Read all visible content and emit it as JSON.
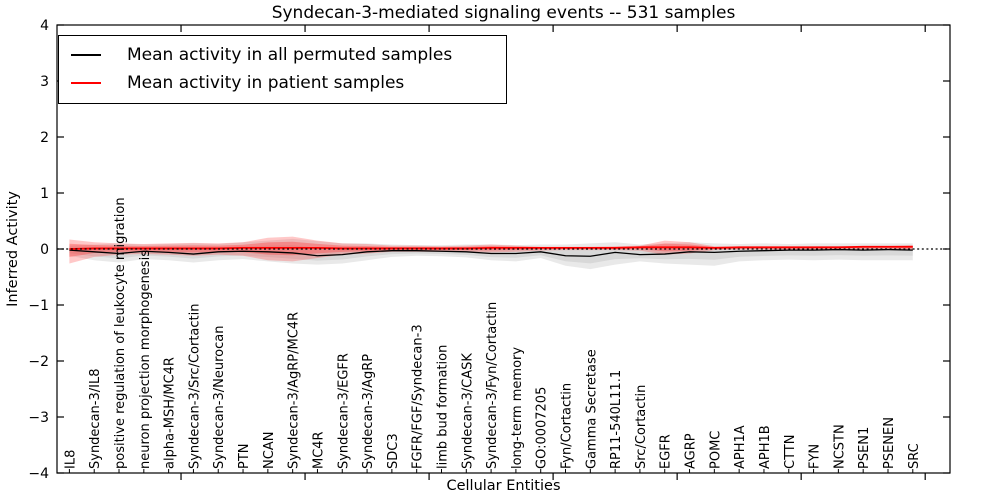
{
  "chart_data": {
    "type": "line",
    "title": "Syndecan-3-mediated signaling events -- 531 samples",
    "xlabel": "Cellular Entities",
    "ylabel": "Inferred Activity",
    "ylim": [
      -4,
      4
    ],
    "yticks": [
      4,
      3,
      2,
      1,
      0,
      -1,
      -2,
      -3,
      -4
    ],
    "grid": false,
    "legend_position": "upper left",
    "reference_line": {
      "y": 0,
      "style": "dotted",
      "color": "#000000"
    },
    "categories": [
      "IL8",
      "Syndecan-3/IL8",
      "positive regulation of leukocyte migration",
      "neuron projection morphogenesis",
      "alpha-MSH/MC4R",
      "Syndecan-3/Src/Cortactin",
      "Syndecan-3/Neurocan",
      "PTN",
      "NCAN",
      "Syndecan-3/AgRP/MC4R",
      "MC4R",
      "Syndecan-3/EGFR",
      "Syndecan-3/AgRP",
      "SDC3",
      "FGFR/FGF/Syndecan-3",
      "limb bud formation",
      "Syndecan-3/CASK",
      "Syndecan-3/Fyn/Cortactin",
      "long-term memory",
      "GO:0007205",
      "Fyn/Cortactin",
      "Gamma Secretase",
      "RP11-540L11.1",
      "Src/Cortactin",
      "EGFR",
      "AGRP",
      "POMC",
      "APH1A",
      "APH1B",
      "CTTN",
      "FYN",
      "NCSTN",
      "PSEN1",
      "PSENEN",
      "SRC"
    ],
    "series": [
      {
        "name": "Mean activity in all permuted samples",
        "color": "#000000",
        "band_color": "#999999",
        "values": [
          -0.02,
          -0.05,
          -0.08,
          -0.04,
          -0.06,
          -0.09,
          -0.05,
          -0.04,
          -0.05,
          -0.07,
          -0.12,
          -0.1,
          -0.05,
          -0.03,
          -0.03,
          -0.04,
          -0.05,
          -0.08,
          -0.08,
          -0.05,
          -0.12,
          -0.13,
          -0.06,
          -0.1,
          -0.09,
          -0.05,
          -0.06,
          -0.04,
          -0.03,
          -0.02,
          -0.02,
          -0.01,
          -0.02,
          -0.01,
          -0.02
        ],
        "band_upper": [
          0.06,
          0.08,
          0.1,
          0.08,
          0.09,
          0.1,
          0.09,
          0.12,
          0.15,
          0.18,
          0.14,
          0.1,
          0.1,
          0.08,
          0.07,
          0.07,
          0.08,
          0.08,
          0.07,
          0.08,
          0.08,
          0.1,
          0.12,
          0.08,
          0.1,
          0.12,
          0.1,
          0.09,
          0.1,
          0.09,
          0.1,
          0.1,
          0.1,
          0.1,
          0.1
        ],
        "band_lower": [
          -0.12,
          -0.2,
          -0.24,
          -0.18,
          -0.2,
          -0.24,
          -0.2,
          -0.18,
          -0.22,
          -0.26,
          -0.28,
          -0.26,
          -0.2,
          -0.14,
          -0.12,
          -0.13,
          -0.15,
          -0.2,
          -0.22,
          -0.16,
          -0.3,
          -0.36,
          -0.28,
          -0.22,
          -0.26,
          -0.28,
          -0.3,
          -0.22,
          -0.2,
          -0.19,
          -0.2,
          -0.19,
          -0.2,
          -0.2,
          -0.2
        ]
      },
      {
        "name": "Mean activity in patient samples",
        "color": "#ff0000",
        "band_color": "#ff2222",
        "values": [
          0.0,
          0.01,
          0.01,
          0.01,
          0.01,
          0.01,
          0.01,
          0.02,
          0.02,
          0.02,
          0.02,
          0.01,
          0.01,
          0.01,
          0.01,
          0.01,
          0.01,
          0.02,
          0.02,
          0.02,
          0.02,
          0.02,
          0.02,
          0.03,
          0.03,
          0.03,
          0.02,
          0.03,
          0.03,
          0.03,
          0.03,
          0.03,
          0.04,
          0.04,
          0.04
        ],
        "band_upper": [
          0.17,
          0.12,
          0.1,
          0.09,
          0.1,
          0.11,
          0.1,
          0.12,
          0.2,
          0.22,
          0.15,
          0.1,
          0.09,
          0.06,
          0.06,
          0.05,
          0.06,
          0.08,
          0.06,
          0.04,
          0.04,
          0.04,
          0.05,
          0.06,
          0.15,
          0.12,
          0.05,
          0.04,
          0.04,
          0.04,
          0.04,
          0.04,
          0.05,
          0.05,
          0.07
        ],
        "band_lower": [
          -0.26,
          -0.14,
          -0.1,
          -0.09,
          -0.1,
          -0.12,
          -0.1,
          -0.12,
          -0.2,
          -0.22,
          -0.16,
          -0.1,
          -0.08,
          -0.05,
          -0.05,
          -0.05,
          -0.05,
          -0.06,
          -0.05,
          -0.03,
          -0.02,
          -0.02,
          -0.02,
          -0.03,
          -0.1,
          -0.08,
          -0.02,
          -0.01,
          -0.01,
          -0.01,
          -0.01,
          -0.01,
          -0.01,
          -0.01,
          -0.02
        ]
      }
    ]
  }
}
